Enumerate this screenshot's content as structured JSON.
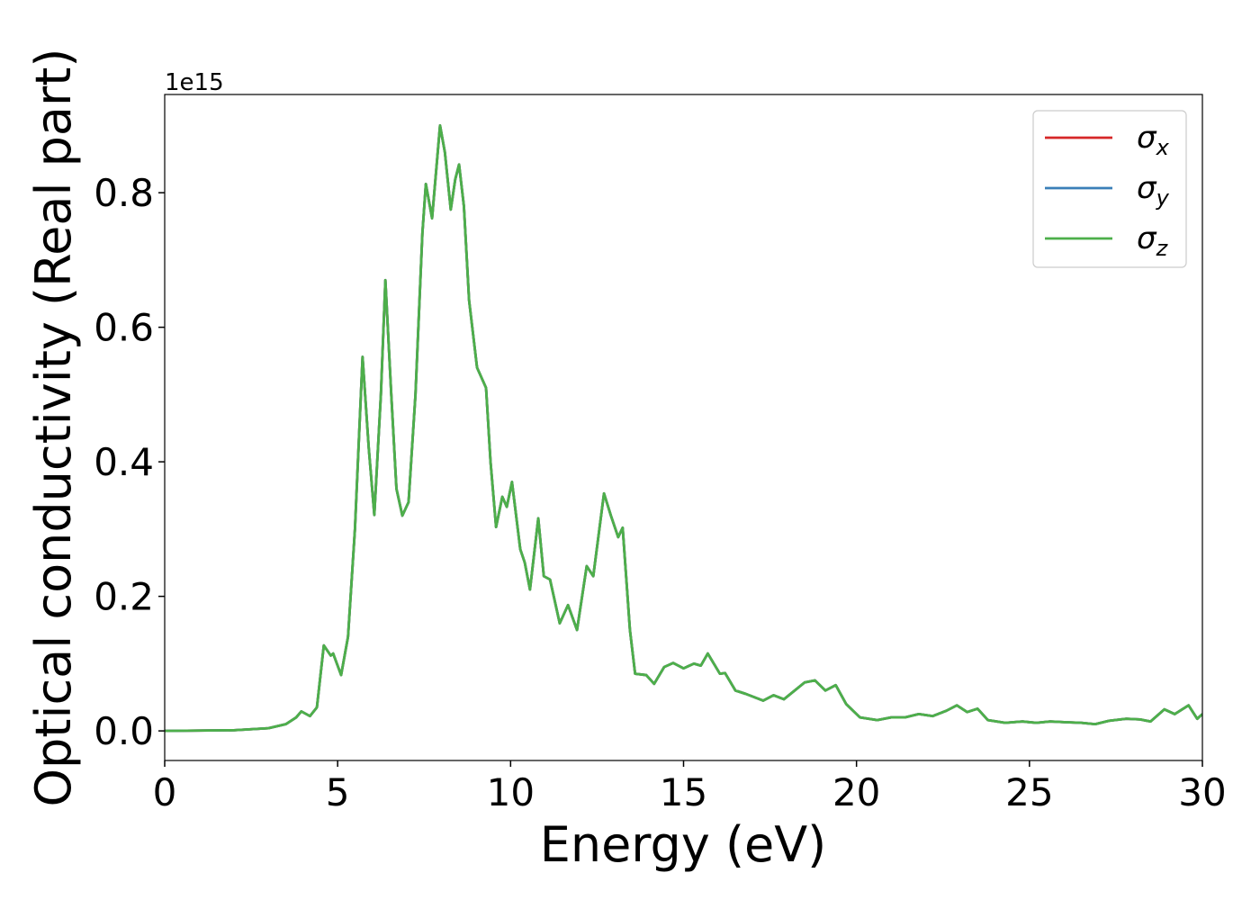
{
  "chart_data": {
    "type": "line",
    "xlabel": "Energy (eV)",
    "ylabel": "Optical conductivity (Real part)",
    "offset_label": "1e15",
    "x": [
      0,
      2,
      3,
      3.5,
      3.8,
      3.95,
      4.2,
      4.4,
      4.6,
      4.8,
      4.87,
      5.1,
      5.3,
      5.5,
      5.72,
      5.9,
      6.06,
      6.25,
      6.38,
      6.55,
      6.7,
      6.87,
      7.05,
      7.25,
      7.45,
      7.55,
      7.73,
      7.96,
      8.1,
      8.27,
      8.4,
      8.51,
      8.65,
      8.8,
      9.03,
      9.29,
      9.42,
      9.58,
      9.76,
      9.89,
      10.04,
      10.28,
      10.41,
      10.56,
      10.8,
      10.96,
      11.14,
      11.42,
      11.66,
      11.92,
      12.2,
      12.39,
      12.7,
      12.9,
      13.11,
      13.24,
      13.45,
      13.6,
      13.92,
      14.15,
      14.44,
      14.7,
      15.0,
      15.3,
      15.5,
      15.7,
      16.05,
      16.2,
      16.5,
      16.8,
      17.3,
      17.6,
      17.9,
      18.5,
      18.8,
      19.1,
      19.4,
      19.7,
      20.1,
      20.6,
      21.0,
      21.4,
      21.8,
      22.2,
      22.6,
      22.9,
      23.2,
      23.5,
      23.8,
      24.3,
      24.8,
      25.2,
      25.6,
      26.0,
      26.5,
      26.9,
      27.3,
      27.8,
      28.2,
      28.5,
      28.9,
      29.2,
      29.6,
      29.85,
      30
    ],
    "series": [
      {
        "name": "σx",
        "color": "#d62728",
        "values": [
          0,
          0.001,
          0.004,
          0.01,
          0.02,
          0.029,
          0.022,
          0.035,
          0.127,
          0.112,
          0.115,
          0.083,
          0.14,
          0.3,
          0.556,
          0.42,
          0.321,
          0.5,
          0.67,
          0.5,
          0.36,
          0.32,
          0.34,
          0.5,
          0.74,
          0.813,
          0.762,
          0.9,
          0.86,
          0.775,
          0.82,
          0.842,
          0.78,
          0.64,
          0.54,
          0.51,
          0.4,
          0.303,
          0.348,
          0.333,
          0.37,
          0.27,
          0.25,
          0.21,
          0.316,
          0.23,
          0.225,
          0.16,
          0.187,
          0.15,
          0.245,
          0.23,
          0.353,
          0.32,
          0.288,
          0.302,
          0.15,
          0.085,
          0.083,
          0.07,
          0.095,
          0.101,
          0.093,
          0.1,
          0.097,
          0.115,
          0.085,
          0.086,
          0.06,
          0.055,
          0.045,
          0.053,
          0.047,
          0.072,
          0.075,
          0.06,
          0.068,
          0.04,
          0.02,
          0.016,
          0.02,
          0.02,
          0.025,
          0.022,
          0.03,
          0.038,
          0.028,
          0.033,
          0.016,
          0.012,
          0.014,
          0.012,
          0.014,
          0.013,
          0.012,
          0.01,
          0.015,
          0.018,
          0.017,
          0.014,
          0.032,
          0.025,
          0.038,
          0.018,
          0.025
        ]
      },
      {
        "name": "σy",
        "color": "#3a7fb8",
        "values": [
          0,
          0.001,
          0.004,
          0.01,
          0.02,
          0.029,
          0.022,
          0.035,
          0.127,
          0.112,
          0.115,
          0.083,
          0.14,
          0.3,
          0.556,
          0.42,
          0.321,
          0.5,
          0.67,
          0.5,
          0.36,
          0.32,
          0.34,
          0.5,
          0.74,
          0.813,
          0.762,
          0.9,
          0.86,
          0.775,
          0.82,
          0.842,
          0.78,
          0.64,
          0.54,
          0.51,
          0.4,
          0.303,
          0.348,
          0.333,
          0.37,
          0.27,
          0.25,
          0.21,
          0.316,
          0.23,
          0.225,
          0.16,
          0.187,
          0.15,
          0.245,
          0.23,
          0.353,
          0.32,
          0.288,
          0.302,
          0.15,
          0.085,
          0.083,
          0.07,
          0.095,
          0.101,
          0.093,
          0.1,
          0.097,
          0.115,
          0.085,
          0.086,
          0.06,
          0.055,
          0.045,
          0.053,
          0.047,
          0.072,
          0.075,
          0.06,
          0.068,
          0.04,
          0.02,
          0.016,
          0.02,
          0.02,
          0.025,
          0.022,
          0.03,
          0.038,
          0.028,
          0.033,
          0.016,
          0.012,
          0.014,
          0.012,
          0.014,
          0.013,
          0.012,
          0.01,
          0.015,
          0.018,
          0.017,
          0.014,
          0.032,
          0.025,
          0.038,
          0.018,
          0.025
        ]
      },
      {
        "name": "σz",
        "color": "#4daf4a",
        "values": [
          0,
          0.001,
          0.004,
          0.01,
          0.02,
          0.029,
          0.022,
          0.035,
          0.127,
          0.112,
          0.115,
          0.083,
          0.14,
          0.3,
          0.556,
          0.42,
          0.321,
          0.5,
          0.67,
          0.5,
          0.36,
          0.32,
          0.34,
          0.5,
          0.74,
          0.813,
          0.762,
          0.9,
          0.86,
          0.775,
          0.82,
          0.842,
          0.78,
          0.64,
          0.54,
          0.51,
          0.4,
          0.303,
          0.348,
          0.333,
          0.37,
          0.27,
          0.25,
          0.21,
          0.316,
          0.23,
          0.225,
          0.16,
          0.187,
          0.15,
          0.245,
          0.23,
          0.353,
          0.32,
          0.288,
          0.302,
          0.15,
          0.085,
          0.083,
          0.07,
          0.095,
          0.101,
          0.093,
          0.1,
          0.097,
          0.115,
          0.085,
          0.086,
          0.06,
          0.055,
          0.045,
          0.053,
          0.047,
          0.072,
          0.075,
          0.06,
          0.068,
          0.04,
          0.02,
          0.016,
          0.02,
          0.02,
          0.025,
          0.022,
          0.03,
          0.038,
          0.028,
          0.033,
          0.016,
          0.012,
          0.014,
          0.012,
          0.014,
          0.013,
          0.012,
          0.01,
          0.015,
          0.018,
          0.017,
          0.014,
          0.032,
          0.025,
          0.038,
          0.018,
          0.025
        ]
      }
    ],
    "xlim": [
      0,
      30
    ],
    "xticks": [
      0,
      5,
      10,
      15,
      20,
      25,
      30
    ],
    "ylim": [
      -0.044,
      0.946
    ],
    "yticks": [
      {
        "value": 0,
        "label": "0.0"
      },
      0.2,
      0.4,
      0.6,
      0.8
    ],
    "grid": false,
    "legend": "upper right"
  }
}
